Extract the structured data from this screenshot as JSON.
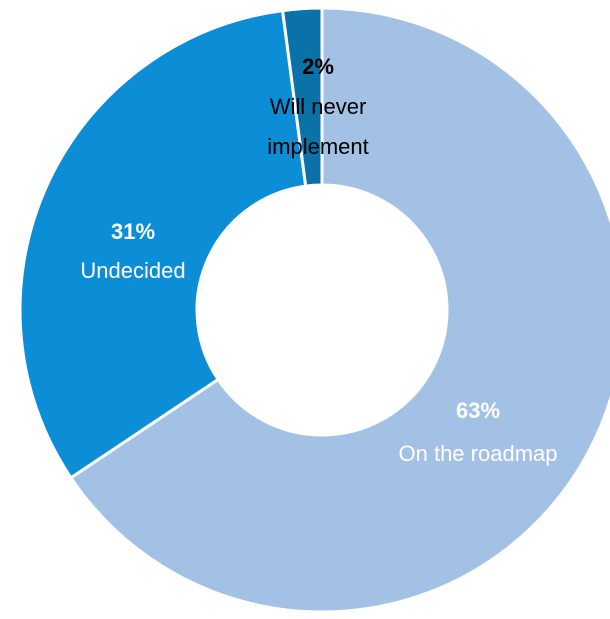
{
  "chart_data": {
    "type": "donut",
    "categories": [
      "On the roadmap",
      "Undecided",
      "Will never\nimplement"
    ],
    "values": [
      63,
      31,
      2
    ],
    "value_labels": [
      "63%",
      "31%",
      "2%"
    ],
    "colors": [
      "#a3c1e4",
      "#0b8ed5",
      "#0a72a8"
    ],
    "label_colors": [
      "#ffffff",
      "#ffffff",
      "#000000"
    ],
    "start_angle": 0,
    "direction": "clockwise"
  }
}
